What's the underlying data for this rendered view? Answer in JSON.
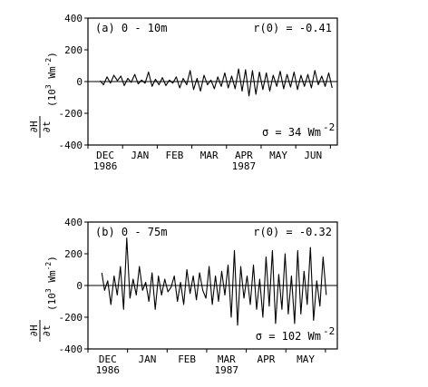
{
  "chart_data": [
    {
      "type": "line",
      "panel": "a",
      "title": "(a) 0 - 10m",
      "correlation_label": "r(0) = -0.41",
      "sigma_label": "σ = 34 Wm",
      "sigma_exp": "-2",
      "ylabel": {
        "num": "∂H",
        "den": "∂t",
        "units": "(10",
        "units_exp": "3",
        "units_rest": " Wm",
        "units_exp2": "-2",
        "units_close": ")"
      },
      "ylim": [
        -400,
        400
      ],
      "yticks": [
        -400,
        -200,
        0,
        200,
        400
      ],
      "x_months": [
        {
          "label": "DEC",
          "sub": "1986",
          "t": 0.5
        },
        {
          "label": "JAN",
          "sub": "",
          "t": 1.5
        },
        {
          "label": "FEB",
          "sub": "",
          "t": 2.5
        },
        {
          "label": "MAR",
          "sub": "",
          "t": 3.5
        },
        {
          "label": "APR",
          "sub": "1987",
          "t": 4.5
        },
        {
          "label": "MAY",
          "sub": "",
          "t": 5.5
        },
        {
          "label": "JUN",
          "sub": "",
          "t": 6.5
        }
      ],
      "xlim": [
        0,
        7.2
      ],
      "x": [
        0.35,
        0.45,
        0.55,
        0.65,
        0.75,
        0.85,
        0.95,
        1.05,
        1.15,
        1.25,
        1.35,
        1.45,
        1.55,
        1.65,
        1.75,
        1.85,
        1.95,
        2.05,
        2.15,
        2.25,
        2.35,
        2.45,
        2.55,
        2.65,
        2.75,
        2.85,
        2.95,
        3.05,
        3.15,
        3.25,
        3.35,
        3.45,
        3.55,
        3.65,
        3.75,
        3.85,
        3.95,
        4.05,
        4.15,
        4.25,
        4.35,
        4.45,
        4.55,
        4.65,
        4.75,
        4.85,
        4.95,
        5.05,
        5.15,
        5.25,
        5.35,
        5.45,
        5.55,
        5.65,
        5.75,
        5.85,
        5.95,
        6.05,
        6.15,
        6.25,
        6.35,
        6.45,
        6.55,
        6.65,
        6.75,
        6.85,
        6.95,
        7.05
      ],
      "y": [
        5,
        -20,
        30,
        -10,
        40,
        5,
        35,
        -25,
        20,
        -5,
        45,
        -15,
        10,
        -10,
        60,
        -30,
        15,
        -20,
        25,
        -25,
        10,
        -10,
        30,
        -40,
        20,
        -20,
        70,
        -50,
        20,
        -60,
        40,
        -20,
        10,
        -45,
        30,
        -30,
        55,
        -40,
        35,
        -45,
        80,
        -60,
        75,
        -90,
        70,
        -80,
        60,
        -50,
        55,
        -60,
        40,
        -30,
        65,
        -45,
        45,
        -35,
        60,
        -50,
        40,
        -30,
        45,
        -40,
        70,
        -20,
        35,
        -30,
        55,
        -40
      ]
    },
    {
      "type": "line",
      "panel": "b",
      "title": "(b) 0 - 75m",
      "correlation_label": "r(0) = -0.32",
      "sigma_label": "σ = 102 Wm",
      "sigma_exp": "-2",
      "ylabel": {
        "num": "∂H",
        "den": "∂t",
        "units": "(10",
        "units_exp": "3",
        "units_rest": " Wm",
        "units_exp2": "-2",
        "units_close": ")"
      },
      "ylim": [
        -400,
        400
      ],
      "yticks": [
        -400,
        -200,
        0,
        200,
        400
      ],
      "x_months": [
        {
          "label": "DEC",
          "sub": "1986",
          "t": 0.5
        },
        {
          "label": "JAN",
          "sub": "",
          "t": 1.5
        },
        {
          "label": "FEB",
          "sub": "",
          "t": 2.5
        },
        {
          "label": "MAR",
          "sub": "1987",
          "t": 3.5
        },
        {
          "label": "APR",
          "sub": "",
          "t": 4.5
        },
        {
          "label": "MAY",
          "sub": "",
          "t": 5.5
        }
      ],
      "xlim": [
        0,
        6.3
      ],
      "x": [
        0.35,
        0.42,
        0.5,
        0.58,
        0.66,
        0.74,
        0.82,
        0.9,
        0.98,
        1.06,
        1.14,
        1.22,
        1.3,
        1.38,
        1.46,
        1.54,
        1.62,
        1.7,
        1.78,
        1.86,
        1.94,
        2.02,
        2.1,
        2.18,
        2.26,
        2.34,
        2.42,
        2.5,
        2.58,
        2.66,
        2.74,
        2.82,
        2.9,
        2.98,
        3.06,
        3.14,
        3.22,
        3.3,
        3.38,
        3.46,
        3.54,
        3.62,
        3.7,
        3.78,
        3.86,
        3.94,
        4.02,
        4.1,
        4.18,
        4.26,
        4.34,
        4.42,
        4.5,
        4.58,
        4.66,
        4.74,
        4.82,
        4.9,
        4.98,
        5.06,
        5.14,
        5.22,
        5.3,
        5.38,
        5.46,
        5.54,
        5.62,
        5.7,
        5.78,
        5.86,
        5.94,
        6.02
      ],
      "y": [
        80,
        -30,
        30,
        -120,
        60,
        -60,
        120,
        -150,
        300,
        -80,
        40,
        -60,
        120,
        -30,
        20,
        -100,
        80,
        -150,
        60,
        -60,
        40,
        -40,
        -10,
        60,
        -100,
        20,
        -120,
        100,
        -50,
        60,
        -90,
        80,
        -30,
        -80,
        120,
        -120,
        60,
        -100,
        90,
        -60,
        130,
        -200,
        220,
        -250,
        120,
        -80,
        60,
        -120,
        130,
        -150,
        40,
        -200,
        180,
        -130,
        220,
        -240,
        70,
        -150,
        200,
        -180,
        60,
        -240,
        220,
        -180,
        90,
        -120,
        240,
        -220,
        30,
        -130,
        180,
        -60
      ]
    }
  ]
}
